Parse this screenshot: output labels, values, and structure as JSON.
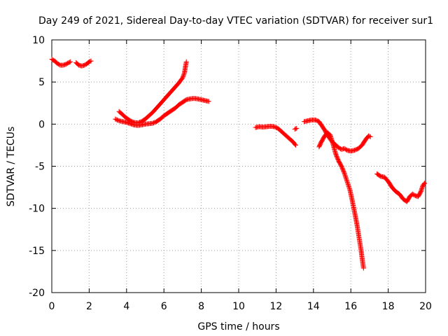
{
  "chart_data": {
    "type": "scatter",
    "title": "Day 249 of 2021, Sidereal Day-to-day VTEC variation (SDTVAR) for receiver sur1",
    "xlabel": "GPS time / hours",
    "ylabel": "SDTVAR / TECUs",
    "xlim": [
      0,
      20
    ],
    "ylim": [
      -20,
      10
    ],
    "xticks": [
      "0",
      "2",
      "4",
      "6",
      "8",
      "10",
      "12",
      "14",
      "16",
      "18",
      "20"
    ],
    "yticks": [
      "10",
      "5",
      "0",
      "-5",
      "-10",
      "-15",
      "-20"
    ],
    "grid": true,
    "legend": "none",
    "marker": "plus",
    "color": "#ff0000",
    "series": [
      {
        "points": [
          [
            0.0,
            7.7
          ],
          [
            0.15,
            7.5
          ],
          [
            0.3,
            7.2
          ],
          [
            0.45,
            7.0
          ],
          [
            0.6,
            7.0
          ],
          [
            0.75,
            7.1
          ],
          [
            0.9,
            7.3
          ],
          [
            1.0,
            7.4
          ]
        ]
      },
      {
        "points": [
          [
            1.3,
            7.3
          ],
          [
            1.45,
            7.0
          ],
          [
            1.6,
            6.9
          ],
          [
            1.75,
            7.0
          ],
          [
            1.9,
            7.2
          ],
          [
            2.0,
            7.4
          ],
          [
            2.1,
            7.5
          ]
        ]
      },
      {
        "points": [
          [
            3.4,
            0.6
          ],
          [
            3.6,
            0.4
          ],
          [
            3.8,
            0.3
          ],
          [
            4.0,
            0.2
          ],
          [
            4.2,
            0.05
          ],
          [
            4.4,
            -0.1
          ],
          [
            4.6,
            -0.15
          ],
          [
            4.8,
            -0.1
          ],
          [
            5.0,
            0.0
          ],
          [
            5.2,
            0.05
          ],
          [
            5.4,
            0.1
          ],
          [
            5.6,
            0.3
          ],
          [
            5.8,
            0.6
          ],
          [
            6.0,
            1.0
          ],
          [
            6.2,
            1.3
          ],
          [
            6.4,
            1.6
          ],
          [
            6.6,
            1.9
          ],
          [
            6.8,
            2.3
          ],
          [
            7.0,
            2.6
          ],
          [
            7.2,
            2.9
          ],
          [
            7.4,
            3.0
          ],
          [
            7.6,
            3.05
          ],
          [
            7.8,
            3.0
          ],
          [
            8.0,
            2.9
          ],
          [
            8.2,
            2.8
          ],
          [
            8.4,
            2.7
          ]
        ]
      },
      {
        "points": [
          [
            3.6,
            1.5
          ],
          [
            3.8,
            1.1
          ],
          [
            4.0,
            0.7
          ],
          [
            4.2,
            0.4
          ],
          [
            4.4,
            0.2
          ],
          [
            4.6,
            0.15
          ],
          [
            4.8,
            0.3
          ],
          [
            5.0,
            0.6
          ],
          [
            5.2,
            1.0
          ],
          [
            5.4,
            1.4
          ],
          [
            5.6,
            1.9
          ],
          [
            5.8,
            2.4
          ],
          [
            6.0,
            2.9
          ],
          [
            6.2,
            3.4
          ],
          [
            6.4,
            3.9
          ],
          [
            6.6,
            4.4
          ],
          [
            6.8,
            4.9
          ],
          [
            7.0,
            5.5
          ],
          [
            7.1,
            6.1
          ],
          [
            7.15,
            6.8
          ],
          [
            7.2,
            7.4
          ]
        ]
      },
      {
        "points": [
          [
            10.9,
            -0.4
          ],
          [
            11.1,
            -0.3
          ],
          [
            11.3,
            -0.35
          ],
          [
            11.5,
            -0.3
          ],
          [
            11.7,
            -0.25
          ],
          [
            11.9,
            -0.3
          ],
          [
            12.1,
            -0.5
          ],
          [
            12.3,
            -0.9
          ],
          [
            12.5,
            -1.3
          ],
          [
            12.7,
            -1.7
          ],
          [
            12.9,
            -2.1
          ],
          [
            13.05,
            -2.5
          ]
        ]
      },
      {
        "points": [
          [
            13.0,
            -0.6
          ],
          [
            13.1,
            -0.5
          ]
        ]
      },
      {
        "points": [
          [
            13.5,
            0.3
          ],
          [
            13.7,
            0.4
          ],
          [
            13.9,
            0.5
          ],
          [
            14.1,
            0.5
          ],
          [
            14.3,
            0.3
          ],
          [
            14.45,
            -0.2
          ],
          [
            14.6,
            -0.7
          ],
          [
            14.75,
            -1.3
          ],
          [
            14.9,
            -1.8
          ],
          [
            15.05,
            -2.2
          ],
          [
            15.2,
            -2.5
          ],
          [
            15.35,
            -2.8
          ],
          [
            15.5,
            -3.0
          ],
          [
            15.65,
            -2.9
          ],
          [
            15.8,
            -3.1
          ],
          [
            16.0,
            -3.2
          ],
          [
            16.2,
            -3.1
          ],
          [
            16.4,
            -2.9
          ],
          [
            16.6,
            -2.5
          ],
          [
            16.8,
            -1.8
          ],
          [
            16.95,
            -1.4
          ],
          [
            17.05,
            -1.5
          ]
        ]
      },
      {
        "points": [
          [
            14.3,
            -2.7
          ],
          [
            14.4,
            -2.2
          ],
          [
            14.5,
            -1.8
          ],
          [
            14.6,
            -1.4
          ],
          [
            14.75,
            -1.0
          ],
          [
            14.9,
            -1.3
          ],
          [
            15.05,
            -2.4
          ],
          [
            15.2,
            -3.6
          ],
          [
            15.35,
            -4.4
          ],
          [
            15.5,
            -5.0
          ],
          [
            15.65,
            -5.8
          ],
          [
            15.8,
            -6.8
          ],
          [
            15.95,
            -7.8
          ],
          [
            16.05,
            -8.8
          ],
          [
            16.15,
            -9.9
          ],
          [
            16.25,
            -11.0
          ],
          [
            16.35,
            -12.2
          ],
          [
            16.45,
            -13.6
          ],
          [
            16.55,
            -15.0
          ],
          [
            16.62,
            -16.2
          ],
          [
            16.68,
            -17.1
          ]
        ]
      },
      {
        "points": [
          [
            17.4,
            -5.9
          ],
          [
            17.6,
            -6.2
          ],
          [
            17.8,
            -6.3
          ],
          [
            18.0,
            -6.8
          ],
          [
            18.2,
            -7.5
          ],
          [
            18.4,
            -8.0
          ],
          [
            18.6,
            -8.3
          ],
          [
            18.8,
            -8.9
          ],
          [
            19.0,
            -9.2
          ],
          [
            19.15,
            -8.6
          ],
          [
            19.3,
            -8.3
          ],
          [
            19.45,
            -8.5
          ],
          [
            19.6,
            -8.6
          ],
          [
            19.75,
            -8.0
          ],
          [
            19.85,
            -7.3
          ],
          [
            19.95,
            -7.0
          ]
        ]
      }
    ]
  }
}
